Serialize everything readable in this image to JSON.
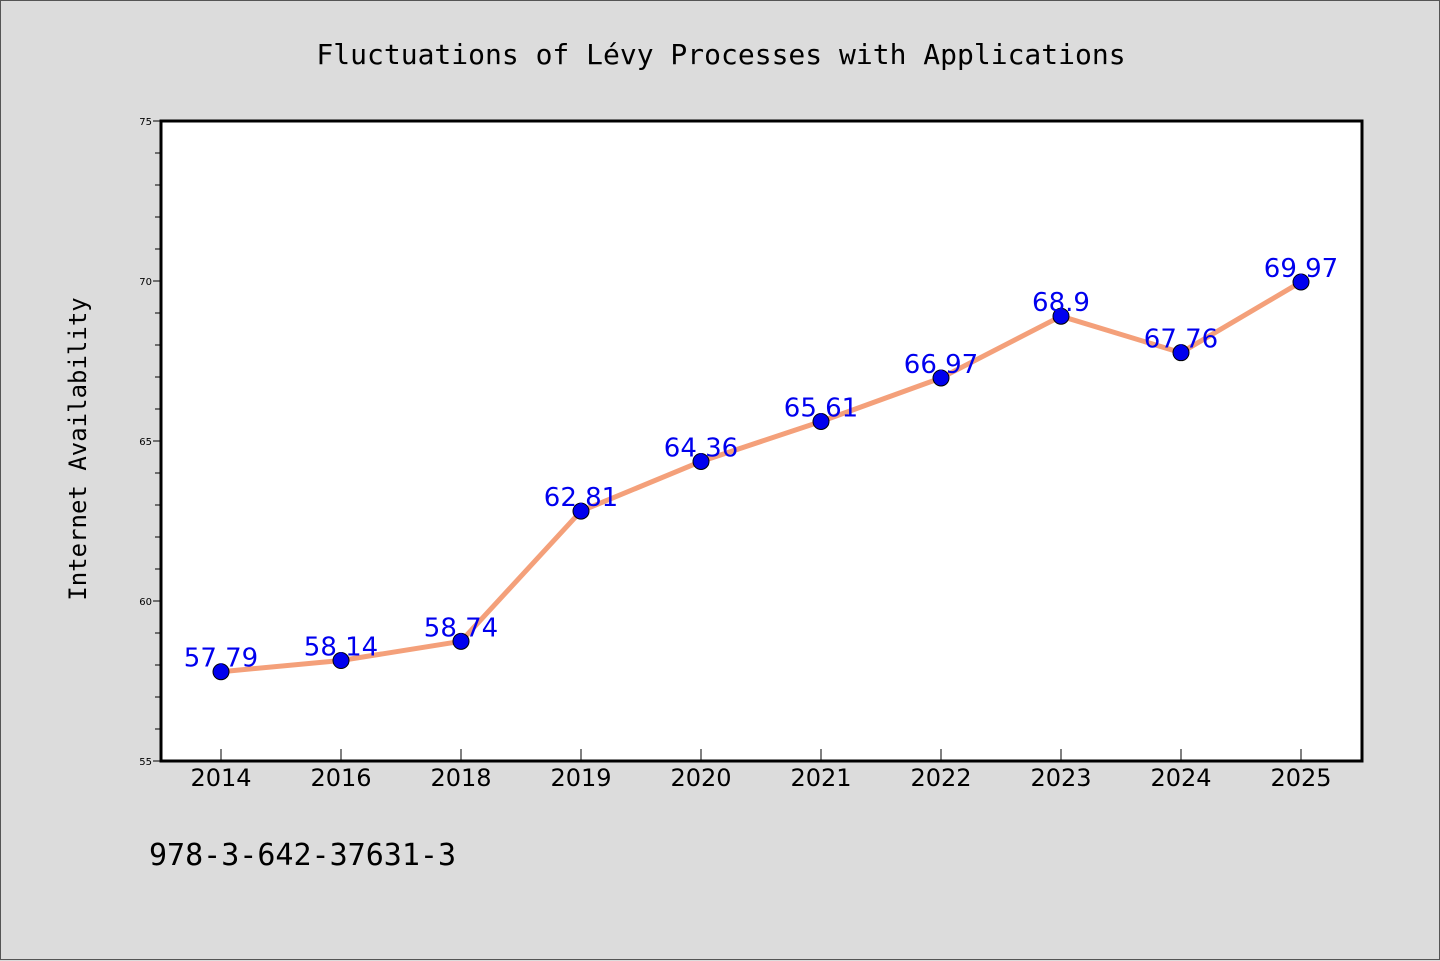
{
  "chart_data": {
    "type": "line",
    "title": "Fluctuations of Lévy Processes with Applications",
    "xlabel": "",
    "ylabel": "Internet Availability",
    "categories": [
      "2014",
      "2016",
      "2018",
      "2019",
      "2020",
      "2021",
      "2022",
      "2023",
      "2024",
      "2025"
    ],
    "series": [
      {
        "values": [
          57.79,
          58.14,
          58.74,
          62.81,
          64.36,
          65.61,
          66.97,
          68.9,
          67.76,
          69.97
        ]
      }
    ],
    "data_labels": [
      "57.79",
      "58.14",
      "58.74",
      "62.81",
      "64.36",
      "65.61",
      "66.97",
      "68.9",
      "67.76",
      "69.97"
    ],
    "ylim": [
      55,
      75
    ],
    "yticks": [
      "55",
      "60",
      "65",
      "70",
      "75"
    ],
    "grid": false,
    "legend": "none",
    "line_color": "#f4a07a",
    "marker_color": "#0000ee",
    "label_color": "#0000ee"
  },
  "footer": {
    "isbn": "978-3-642-37631-3"
  }
}
